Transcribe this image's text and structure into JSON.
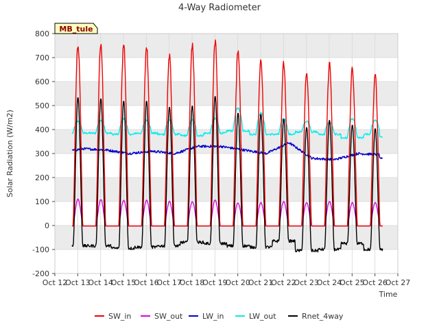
{
  "chart_data": {
    "type": "line",
    "title": "4-Way Radiometer",
    "xlabel": "Time",
    "ylabel": "Solar Radiation (W/m2)",
    "ylim": [
      -200,
      800
    ],
    "xlim": [
      12,
      27
    ],
    "yticks": [
      -200,
      -100,
      0,
      100,
      200,
      300,
      400,
      500,
      600,
      700,
      800
    ],
    "xticks": [
      {
        "v": 12,
        "label": "Oct 12"
      },
      {
        "v": 13,
        "label": "Oct 13"
      },
      {
        "v": 14,
        "label": "Oct 14"
      },
      {
        "v": 15,
        "label": "Oct 15"
      },
      {
        "v": 16,
        "label": "Oct 16"
      },
      {
        "v": 17,
        "label": "Oct 17"
      },
      {
        "v": 18,
        "label": "Oct 18"
      },
      {
        "v": 19,
        "label": "Oct 19"
      },
      {
        "v": 20,
        "label": "Oct 20"
      },
      {
        "v": 21,
        "label": "Oct 21"
      },
      {
        "v": 22,
        "label": "Oct 22"
      },
      {
        "v": 23,
        "label": "Oct 23"
      },
      {
        "v": 24,
        "label": "Oct 24"
      },
      {
        "v": 25,
        "label": "Oct 25"
      },
      {
        "v": 26,
        "label": "Oct 26"
      },
      {
        "v": 27,
        "label": "Oct 27"
      }
    ],
    "grid": true,
    "legend_position": "bottom",
    "annotation": "MB_tule",
    "series": [
      {
        "name": "SW_in",
        "color": "#ee0000",
        "peaks": [
          755,
          760,
          755,
          748,
          705,
          750,
          770,
          735,
          692,
          675,
          635,
          675,
          655,
          625
        ],
        "night": -2
      },
      {
        "name": "SW_out",
        "color": "#dd00dd",
        "peaks": [
          110,
          108,
          105,
          105,
          100,
          100,
          105,
          95,
          95,
          100,
          95,
          100,
          95,
          95
        ],
        "night": -2
      },
      {
        "name": "LW_in",
        "color": "#0000cc",
        "daily": [
          305,
          320,
          315,
          300,
          310,
          300,
          330,
          330,
          315,
          300,
          345,
          280,
          275,
          300,
          295
        ],
        "end": 280
      },
      {
        "name": "LW_out",
        "color": "#00eeee",
        "base": [
          385,
          385,
          380,
          385,
          380,
          375,
          385,
          395,
          380,
          380,
          390,
          380,
          365,
          380,
          385
        ],
        "peaks": [
          435,
          440,
          445,
          440,
          440,
          440,
          445,
          490,
          470,
          445,
          435,
          430,
          445,
          440
        ],
        "end": 370
      },
      {
        "name": "Rnet_4way",
        "color": "#000000",
        "peaks": [
          535,
          530,
          520,
          520,
          495,
          500,
          540,
          470,
          465,
          445,
          410,
          440,
          420,
          405
        ],
        "night": [
          -90,
          -85,
          -85,
          -95,
          -90,
          -85,
          -70,
          -75,
          -85,
          -90,
          -65,
          -105,
          -100,
          -75,
          -100
        ]
      }
    ]
  }
}
